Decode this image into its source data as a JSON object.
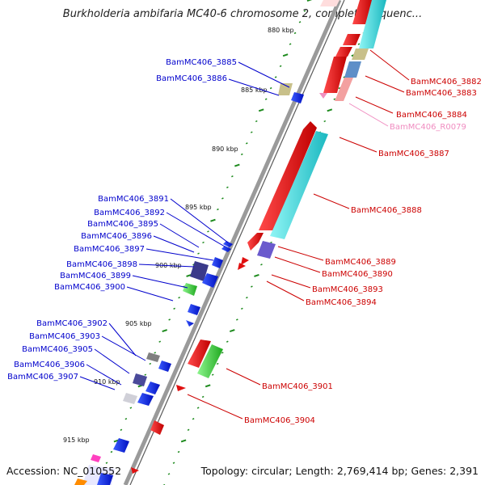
{
  "title": "Burkholderia ambifaria MC40-6 chromosome 2, complete sequenc...",
  "accession": "Accession: NC_010552",
  "summary": "Topology: circular; Length: 2,769,414 bp; Genes: 2,391",
  "colors": {
    "backbone": "#808080",
    "tick": "#1d8a1d",
    "reverse_label": "#0000cc",
    "forward_label": "#cc0000",
    "rna_label": "#f08cc0"
  },
  "kbp_ticks": [
    "880 kbp",
    "885 kbp",
    "890 kbp",
    "895 kbp",
    "900 kbp",
    "905 kbp",
    "910 kbp",
    "915 kbp"
  ],
  "reverse_labels": [
    "BamMC406_3885",
    "BamMC406_3886",
    "BamMC406_3891",
    "BamMC406_3892",
    "BamMC406_3895",
    "BamMC406_3896",
    "BamMC406_3897",
    "BamMC406_3898",
    "BamMC406_3899",
    "BamMC406_3900",
    "BamMC406_3902",
    "BamMC406_3903",
    "BamMC406_3905",
    "BamMC406_3906",
    "BamMC406_3907"
  ],
  "forward_labels": [
    "BamMC406_3882",
    "BamMC406_3883",
    "BamMC406_3884",
    "BamMC406_R0079",
    "BamMC406_3887",
    "BamMC406_3888",
    "BamMC406_3889",
    "BamMC406_3890",
    "BamMC406_3893",
    "BamMC406_3894",
    "BamMC406_3901",
    "BamMC406_3904"
  ]
}
